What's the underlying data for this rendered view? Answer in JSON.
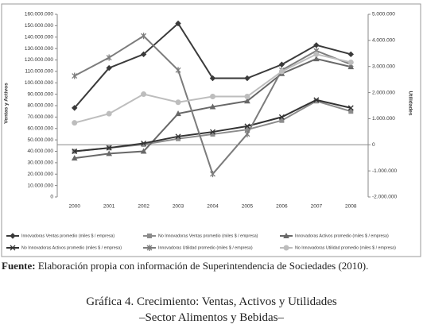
{
  "chart_data": {
    "type": "line",
    "categories": [
      "2000",
      "2001",
      "2002",
      "2003",
      "2004",
      "2005",
      "2006",
      "2007",
      "2008"
    ],
    "ylabel": "Ventas y Activos",
    "y2label": "Utilidades",
    "ylim": [
      0,
      160000000
    ],
    "yticks": [
      0,
      {
        "value": 10000000,
        "label": "10.000.000"
      },
      {
        "value": 20000000,
        "label": "20.000.000"
      },
      {
        "value": 30000000,
        "label": "30.000.000"
      },
      {
        "value": 40000000,
        "label": "40.000.000"
      },
      {
        "value": 50000000,
        "label": "50.000.000"
      },
      {
        "value": 60000000,
        "label": "60.000.000"
      },
      {
        "value": 70000000,
        "label": "70.000.000"
      },
      {
        "value": 80000000,
        "label": "80.000.000"
      },
      {
        "value": 90000000,
        "label": "90.000.000"
      },
      {
        "value": 100000000,
        "label": "100.000.000"
      },
      {
        "value": 110000000,
        "label": "110.000.000"
      },
      {
        "value": 120000000,
        "label": "120.000.000"
      },
      {
        "value": 130000000,
        "label": "130.000.000"
      },
      {
        "value": 140000000,
        "label": "140.000.000"
      },
      {
        "value": 150000000,
        "label": "150.000.000"
      },
      {
        "value": 160000000,
        "label": "160.000.000"
      }
    ],
    "y2lim": [
      -2000000,
      5000000
    ],
    "y2ticks": [
      {
        "value": -2000000,
        "label": "-2.000.000"
      },
      {
        "value": -1000000,
        "label": "-1.000.000"
      },
      0,
      {
        "value": 1000000,
        "label": "1.000.000"
      },
      {
        "value": 2000000,
        "label": "2.000.000"
      },
      {
        "value": 3000000,
        "label": "3.000.000"
      },
      {
        "value": 4000000,
        "label": "4.000.000"
      },
      {
        "value": 5000000,
        "label": "5.000.000"
      }
    ],
    "series": [
      {
        "name": "Innovadoras Ventas promedio (miles $ / empresa)",
        "color": "#3a3a3a",
        "marker": "diamond",
        "values": [
          78000000,
          113000000,
          125000000,
          152000000,
          104000000,
          104000000,
          116000000,
          133000000,
          125000000
        ]
      },
      {
        "name": "No Innovadoras Ventas promedio (miles $ / empresa)",
        "color": "#8c8c8c",
        "marker": "square",
        "values": [
          40000000,
          43000000,
          46000000,
          51000000,
          55000000,
          59000000,
          67000000,
          84000000,
          75000000
        ]
      },
      {
        "name": "Innovadoras Activos promedio (miles $ / empresa)",
        "color": "#686868",
        "marker": "triangle",
        "values": [
          34000000,
          38000000,
          40000000,
          73000000,
          79000000,
          84000000,
          108000000,
          121000000,
          114000000
        ]
      },
      {
        "name": "No Innovadoras Activos promedio (miles $ / empresa)",
        "color": "#333333",
        "marker": "cross",
        "values": [
          40000000,
          43000000,
          47000000,
          53000000,
          57000000,
          62000000,
          70000000,
          85000000,
          78000000
        ]
      },
      {
        "name": "Innovadoras Utilidad promedio (miles $ / empresa)",
        "color": "#7c7c7c",
        "marker": "star",
        "axis": "y2",
        "values": [
          2640000,
          3340000,
          4170000,
          2860000,
          -1120000,
          410000,
          2860000,
          3600000,
          3080000
        ]
      },
      {
        "name": "No Innovadoras Utilidad promedio (miles $ / empresa)",
        "color": "#bdbdbd",
        "marker": "circle",
        "axis": "y2",
        "values": [
          840000,
          1190000,
          1940000,
          1630000,
          1850000,
          1850000,
          2810000,
          3470000,
          3160000
        ]
      }
    ]
  },
  "source": {
    "label": "Fuente:",
    "text": "Elaboración propia con información de Superintendencia de Sociedades (2010)."
  },
  "caption": {
    "title": "Gráfica 4. Crecimiento: Ventas, Activos y Utilidades",
    "subtitle": "–Sector Alimentos y Bebidas–"
  }
}
